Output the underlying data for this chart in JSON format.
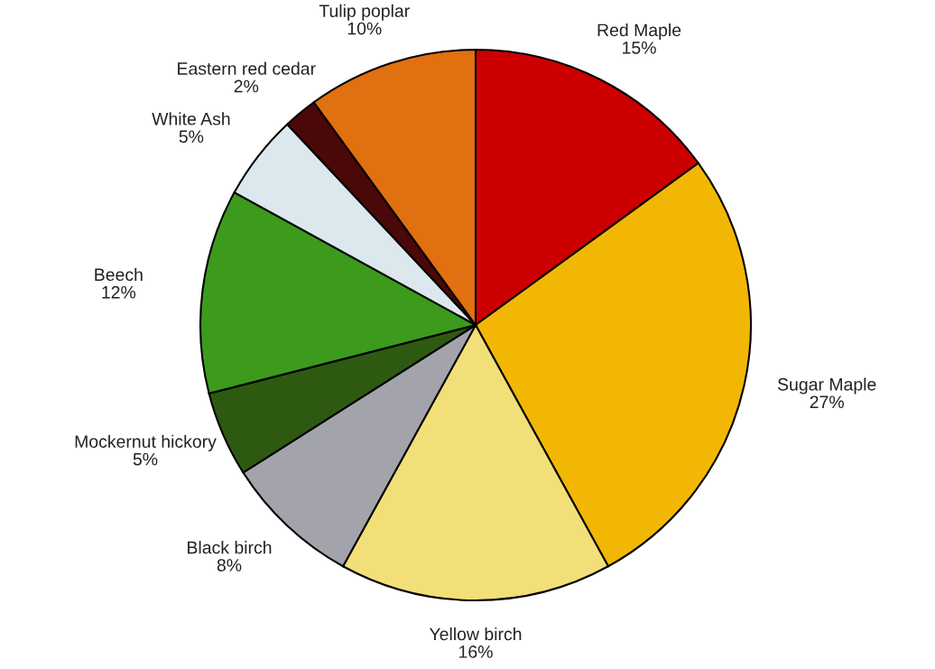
{
  "chart_data": {
    "type": "pie",
    "categories": [
      "Red Maple",
      "Sugar Maple",
      "Yellow birch",
      "Black birch",
      "Mockernut hickory",
      "Beech",
      "White Ash",
      "Eastern red cedar",
      "Tulip poplar"
    ],
    "values": [
      15,
      27,
      16,
      8,
      5,
      12,
      5,
      2,
      10
    ],
    "value_labels": [
      "15%",
      "27%",
      "16%",
      "8%",
      "5%",
      "12%",
      "5%",
      "2%",
      "10%"
    ],
    "colors": [
      "#cc0000",
      "#f2b705",
      "#f2df78",
      "#a3a3ab",
      "#2d5a10",
      "#3c9a1c",
      "#dde8ee",
      "#4a0808",
      "#e07010"
    ],
    "legend": false
  }
}
